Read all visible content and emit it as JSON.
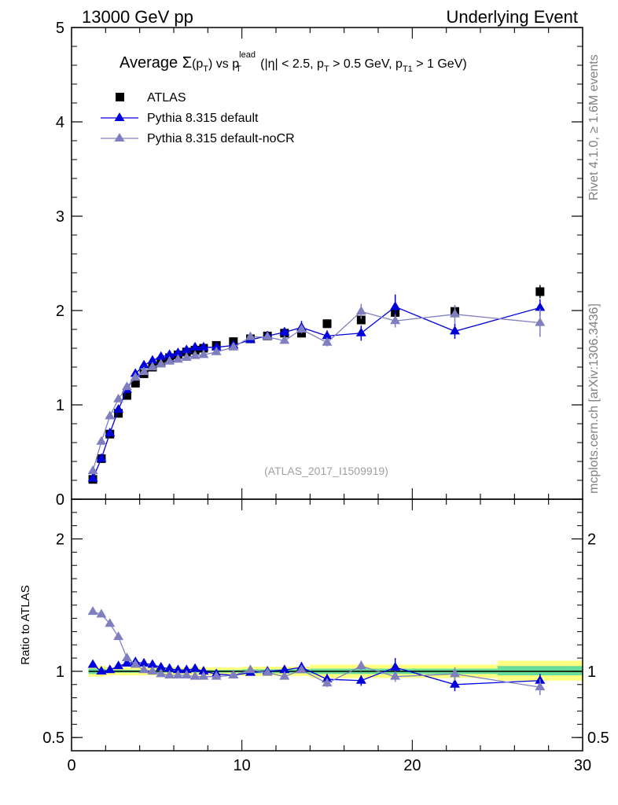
{
  "header": {
    "left_label": "13000 GeV pp",
    "right_label": "Underlying Event"
  },
  "side_labels": {
    "rivet": "Rivet 4.1.0, ≥ 1.6M events",
    "mcplots": "mcplots.cern.ch [arXiv:1306.3436]"
  },
  "chart_data": [
    {
      "type": "scatter",
      "panel": "main",
      "title_parts": {
        "prefix": "Average ",
        "sigma": "Σ",
        "pt_open": "(p",
        "pt_sub": "T",
        "vs": ") vs p",
        "lead_sup": "lead",
        "lead_sub": "T",
        "eta": " (|η| < 2.5, p",
        "pt2_sub": "T",
        "cut1": " > 0.5 GeV, p",
        "t1_sub": "T1",
        "cut2": " > 1 GeV)"
      },
      "watermark": "(ATLAS_2017_I1509919)",
      "xlim": [
        0,
        30
      ],
      "ylim": [
        0,
        5
      ],
      "yticks": [
        0,
        1,
        2,
        3,
        4,
        5
      ],
      "ytick_labels": [
        "0",
        "1",
        "2",
        "3",
        "4",
        "5"
      ],
      "legend": {
        "position": "top-left",
        "entries": [
          "ATLAS",
          "Pythia 8.315 default",
          "Pythia 8.315 default-noCR"
        ]
      },
      "series": [
        {
          "name": "ATLAS",
          "color": "#000000",
          "marker": "square",
          "x": [
            1.25,
            1.75,
            2.25,
            2.75,
            3.25,
            3.75,
            4.25,
            4.75,
            5.25,
            5.75,
            6.25,
            6.75,
            7.25,
            7.75,
            8.5,
            9.5,
            10.5,
            11.5,
            12.5,
            13.5,
            15.0,
            17.0,
            19.0,
            22.5,
            27.5
          ],
          "y": [
            0.21,
            0.43,
            0.69,
            0.91,
            1.1,
            1.23,
            1.33,
            1.4,
            1.46,
            1.5,
            1.53,
            1.56,
            1.58,
            1.6,
            1.63,
            1.67,
            1.7,
            1.73,
            1.76,
            1.76,
            1.86,
            1.9,
            1.98,
            1.99,
            2.2
          ],
          "yerr": [
            0.01,
            0.01,
            0.01,
            0.01,
            0.01,
            0.01,
            0.01,
            0.01,
            0.01,
            0.01,
            0.01,
            0.01,
            0.01,
            0.01,
            0.01,
            0.02,
            0.02,
            0.02,
            0.02,
            0.03,
            0.03,
            0.04,
            0.05,
            0.06,
            0.07
          ]
        },
        {
          "name": "Pythia 8.315 default",
          "color": "#0000dd",
          "marker": "triangle",
          "line": true,
          "x": [
            1.25,
            1.75,
            2.25,
            2.75,
            3.25,
            3.75,
            4.25,
            4.75,
            5.25,
            5.75,
            6.25,
            6.75,
            7.25,
            7.75,
            8.5,
            9.5,
            10.5,
            11.5,
            12.5,
            13.5,
            15.0,
            17.0,
            19.0,
            22.5,
            27.5
          ],
          "y": [
            0.22,
            0.43,
            0.7,
            0.95,
            1.16,
            1.33,
            1.42,
            1.47,
            1.51,
            1.53,
            1.55,
            1.58,
            1.61,
            1.61,
            1.61,
            1.63,
            1.69,
            1.73,
            1.77,
            1.82,
            1.73,
            1.76,
            2.04,
            1.78,
            2.03
          ],
          "yerr": [
            0.01,
            0.01,
            0.01,
            0.01,
            0.01,
            0.01,
            0.01,
            0.01,
            0.01,
            0.01,
            0.01,
            0.01,
            0.01,
            0.01,
            0.02,
            0.02,
            0.03,
            0.04,
            0.05,
            0.07,
            0.06,
            0.08,
            0.13,
            0.08,
            0.09
          ]
        },
        {
          "name": "Pythia 8.315 default-noCR",
          "color": "#7f7fbf",
          "marker": "triangle",
          "line": true,
          "x": [
            1.25,
            1.75,
            2.25,
            2.75,
            3.25,
            3.75,
            4.25,
            4.75,
            5.25,
            5.75,
            6.25,
            6.75,
            7.25,
            7.75,
            8.5,
            9.5,
            10.5,
            11.5,
            12.5,
            13.5,
            15.0,
            17.0,
            19.0,
            22.5,
            27.5
          ],
          "y": [
            0.3,
            0.61,
            0.88,
            1.06,
            1.19,
            1.29,
            1.35,
            1.4,
            1.43,
            1.46,
            1.48,
            1.5,
            1.52,
            1.53,
            1.56,
            1.61,
            1.72,
            1.72,
            1.68,
            1.8,
            1.66,
            1.99,
            1.89,
            1.96,
            1.87
          ],
          "yerr": [
            0.01,
            0.01,
            0.01,
            0.01,
            0.01,
            0.01,
            0.01,
            0.01,
            0.01,
            0.01,
            0.01,
            0.01,
            0.01,
            0.01,
            0.02,
            0.02,
            0.03,
            0.03,
            0.03,
            0.04,
            0.04,
            0.08,
            0.07,
            0.1,
            0.15
          ]
        }
      ]
    },
    {
      "type": "scatter",
      "panel": "ratio",
      "ylabel": "Ratio to ATLAS",
      "xlim": [
        0,
        30
      ],
      "ylim": [
        0.4,
        2.3
      ],
      "yticks": [
        0.5,
        1,
        2
      ],
      "ytick_labels": [
        "0.5",
        "1",
        "2"
      ],
      "xticks": [
        0,
        10,
        20,
        30
      ],
      "xtick_labels": [
        "0",
        "10",
        "20",
        "30"
      ],
      "reference_line": 1.0,
      "uncertainty_bands": [
        {
          "x0": 1.0,
          "x1": 2.0,
          "inner": [
            0.98,
            1.02
          ],
          "outer": [
            0.96,
            1.04
          ]
        },
        {
          "x0": 2.0,
          "x1": 10.0,
          "inner": [
            0.99,
            1.01
          ],
          "outer": [
            0.97,
            1.03
          ]
        },
        {
          "x0": 10.0,
          "x1": 14.0,
          "inner": [
            0.985,
            1.015
          ],
          "outer": [
            0.965,
            1.035
          ]
        },
        {
          "x0": 14.0,
          "x1": 25.0,
          "inner": [
            0.98,
            1.02
          ],
          "outer": [
            0.95,
            1.05
          ]
        },
        {
          "x0": 25.0,
          "x1": 30.0,
          "inner": [
            0.97,
            1.04
          ],
          "outer": [
            0.93,
            1.08
          ]
        }
      ],
      "band_colors": {
        "inner": "#66dd99",
        "outer": "#ffff80"
      },
      "series": [
        {
          "name": "Pythia 8.315 default",
          "color": "#0000dd",
          "x": [
            1.25,
            1.75,
            2.25,
            2.75,
            3.25,
            3.75,
            4.25,
            4.75,
            5.25,
            5.75,
            6.25,
            6.75,
            7.25,
            7.75,
            8.5,
            9.5,
            10.5,
            11.5,
            12.5,
            13.5,
            15.0,
            17.0,
            19.0,
            22.5,
            27.5
          ],
          "y": [
            1.05,
            1.0,
            1.01,
            1.04,
            1.06,
            1.07,
            1.06,
            1.05,
            1.03,
            1.02,
            1.01,
            1.01,
            1.02,
            1.0,
            0.98,
            0.97,
            0.99,
            1.0,
            1.01,
            1.03,
            0.94,
            0.93,
            1.03,
            0.9,
            0.93
          ],
          "yerr": [
            0.01,
            0.01,
            0.01,
            0.01,
            0.01,
            0.01,
            0.01,
            0.01,
            0.01,
            0.01,
            0.01,
            0.01,
            0.01,
            0.01,
            0.01,
            0.01,
            0.02,
            0.02,
            0.03,
            0.04,
            0.04,
            0.04,
            0.07,
            0.05,
            0.05
          ]
        },
        {
          "name": "Pythia 8.315 default-noCR",
          "color": "#7f7fbf",
          "x": [
            1.25,
            1.75,
            2.25,
            2.75,
            3.25,
            3.75,
            4.25,
            4.75,
            5.25,
            5.75,
            6.25,
            6.75,
            7.25,
            7.75,
            8.5,
            9.5,
            10.5,
            11.5,
            12.5,
            13.5,
            15.0,
            17.0,
            19.0,
            22.5,
            27.5
          ],
          "y": [
            1.45,
            1.43,
            1.36,
            1.26,
            1.1,
            1.05,
            1.01,
            1.0,
            0.98,
            0.97,
            0.97,
            0.97,
            0.96,
            0.96,
            0.96,
            0.97,
            1.01,
            0.99,
            0.96,
            1.01,
            0.91,
            1.04,
            0.96,
            0.98,
            0.88
          ],
          "yerr": [
            0.01,
            0.01,
            0.01,
            0.01,
            0.01,
            0.01,
            0.01,
            0.01,
            0.01,
            0.01,
            0.01,
            0.01,
            0.01,
            0.01,
            0.01,
            0.01,
            0.02,
            0.02,
            0.02,
            0.02,
            0.03,
            0.04,
            0.04,
            0.05,
            0.06
          ]
        }
      ]
    }
  ]
}
